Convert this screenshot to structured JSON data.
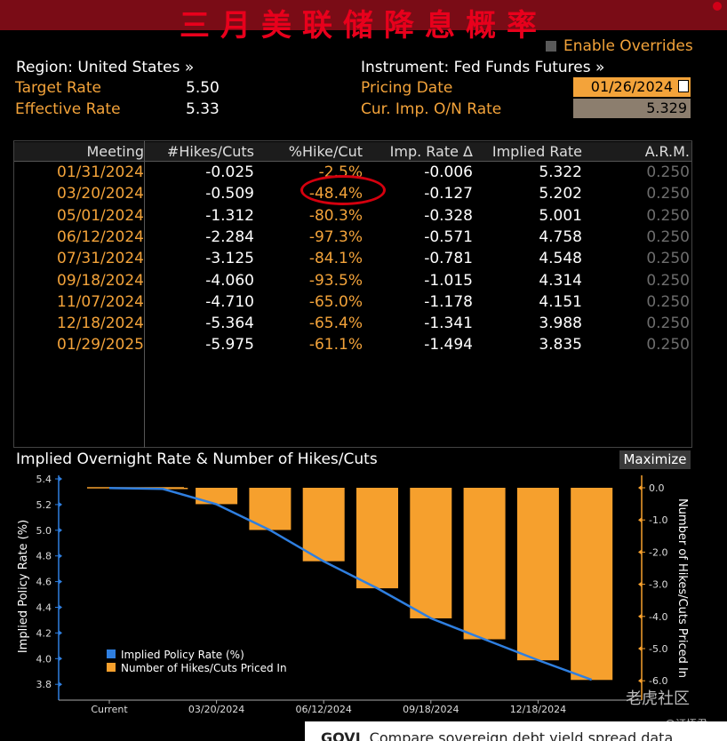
{
  "banner": {
    "title": "三月美联储降息概率"
  },
  "overrides": {
    "label": "Enable Overrides"
  },
  "header": {
    "region": "Region: United States »",
    "instrument": "Instrument: Fed Funds Futures »",
    "target_rate_label": "Target Rate",
    "target_rate_value": "5.50",
    "effective_rate_label": "Effective Rate",
    "effective_rate_value": "5.33",
    "pricing_date_label": "Pricing Date",
    "pricing_date_value": "01/26/2024",
    "cur_imp_label": "Cur. Imp. O/N Rate",
    "cur_imp_value": "5.329"
  },
  "table": {
    "headers": [
      "Meeting",
      "#Hikes/Cuts",
      "%Hike/Cut",
      "Imp. Rate Δ",
      "Implied Rate",
      "A.R.M."
    ],
    "rows": [
      [
        "01/31/2024",
        "-0.025",
        "-2.5%",
        "-0.006",
        "5.322",
        "0.250"
      ],
      [
        "03/20/2024",
        "-0.509",
        "-48.4%",
        "-0.127",
        "5.202",
        "0.250"
      ],
      [
        "05/01/2024",
        "-1.312",
        "-80.3%",
        "-0.328",
        "5.001",
        "0.250"
      ],
      [
        "06/12/2024",
        "-2.284",
        "-97.3%",
        "-0.571",
        "4.758",
        "0.250"
      ],
      [
        "07/31/2024",
        "-3.125",
        "-84.1%",
        "-0.781",
        "4.548",
        "0.250"
      ],
      [
        "09/18/2024",
        "-4.060",
        "-93.5%",
        "-1.015",
        "4.314",
        "0.250"
      ],
      [
        "11/07/2024",
        "-4.710",
        "-65.0%",
        "-1.178",
        "4.151",
        "0.250"
      ],
      [
        "12/18/2024",
        "-5.364",
        "-65.4%",
        "-1.341",
        "3.988",
        "0.250"
      ],
      [
        "01/29/2025",
        "-5.975",
        "-61.1%",
        "-1.494",
        "3.835",
        "0.250"
      ]
    ]
  },
  "chart_section": {
    "title": "Implied Overnight Rate & Number of Hikes/Cuts",
    "maximize_label": "Maximize"
  },
  "chart_data": {
    "type": "bar",
    "title": "",
    "xlabel": "",
    "ylabel_left": "Implied Policy Rate (%)",
    "ylabel_right": "Number of Hikes/Cuts Priced In",
    "x_tick_labels": [
      "Current",
      "03/20/2024",
      "06/12/2024",
      "09/18/2024",
      "12/18/2024"
    ],
    "categories": [
      "Current",
      "01/31/2024",
      "03/20/2024",
      "05/01/2024",
      "06/12/2024",
      "07/31/2024",
      "09/18/2024",
      "11/07/2024",
      "12/18/2024",
      "01/29/2025"
    ],
    "left_axis": {
      "ylim": [
        3.8,
        5.4
      ],
      "ticks": [
        "5.4",
        "5.2",
        "5.0",
        "4.8",
        "4.6",
        "4.4",
        "4.2",
        "4.0",
        "3.8"
      ]
    },
    "right_axis": {
      "ylim": [
        -6.0,
        0.0
      ],
      "ticks": [
        "0.0",
        "-1.0",
        "-2.0",
        "-3.0",
        "-4.0",
        "-5.0",
        "-6.0"
      ]
    },
    "series": [
      {
        "name": "Implied Policy Rate (%)",
        "kind": "line",
        "color": "#2f7fe0",
        "values": [
          5.329,
          5.322,
          5.202,
          5.001,
          4.758,
          4.548,
          4.314,
          4.151,
          3.988,
          3.835
        ]
      },
      {
        "name": "Number of Hikes/Cuts Priced In",
        "kind": "bar",
        "color": "#f6a02d",
        "values": [
          0.0,
          -0.025,
          -0.509,
          -1.312,
          -2.284,
          -3.125,
          -4.06,
          -4.71,
          -5.364,
          -5.975
        ]
      }
    ],
    "legend": "bottom-left"
  },
  "watermark": {
    "text": "老虎社区",
    "author": "@证悟君"
  },
  "bottom_bar": {
    "code": "GOVI",
    "text": "Compare sovereign debt yield spread data"
  }
}
